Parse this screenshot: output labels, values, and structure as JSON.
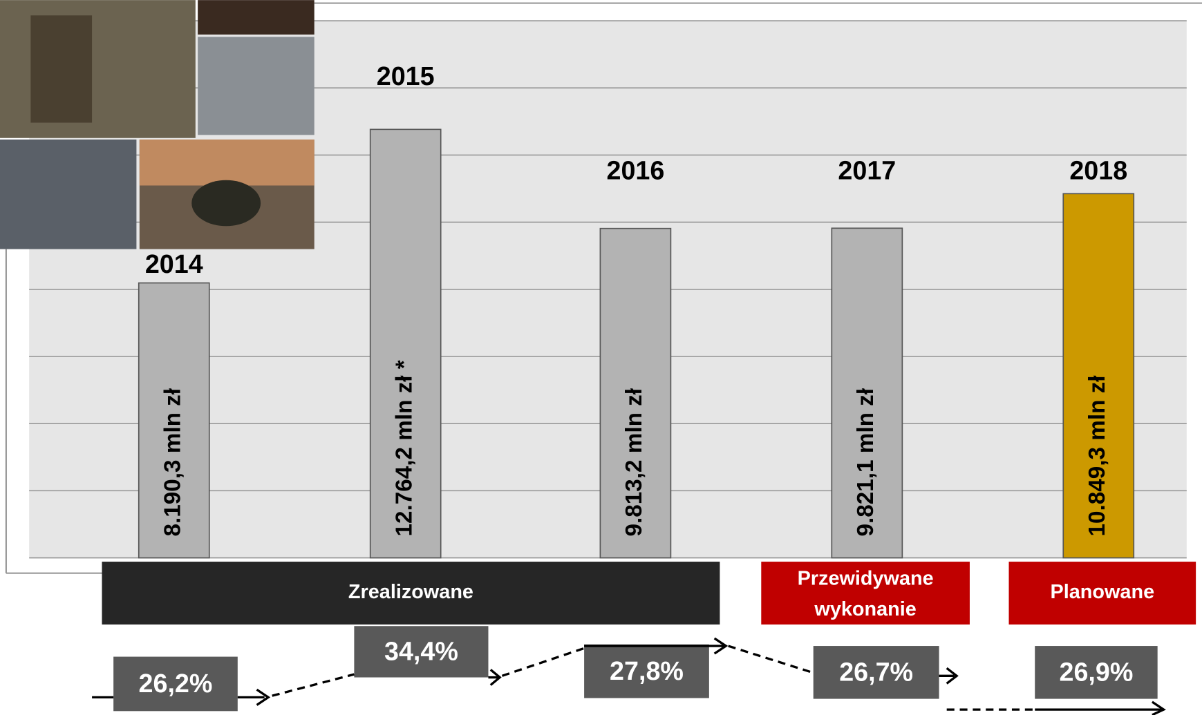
{
  "chart_data": {
    "type": "bar",
    "categories": [
      "2014",
      "2015",
      "2016",
      "2017",
      "2018"
    ],
    "values": [
      8190.3,
      12764.2,
      9813.2,
      9821.1,
      10849.3
    ],
    "value_labels": [
      "8.190,3 mln zł",
      "12.764,2 mln zł *",
      "9.813,2 mln zł",
      "9.821,1 mln zł",
      "10.849,3 mln zł"
    ],
    "colors": [
      "#b3b3b3",
      "#b3b3b3",
      "#b3b3b3",
      "#b3b3b3",
      "#cc9900"
    ],
    "ylim": [
      0,
      16000
    ],
    "yticks": [
      0,
      2000,
      4000,
      6000,
      8000,
      10000,
      12000,
      14000,
      16000
    ],
    "grid": true,
    "groups": [
      "Zrealizowane",
      "Przewidywane wykonanie",
      "Planowane"
    ],
    "group_colors": [
      "#262626",
      "#c00000",
      "#c00000"
    ],
    "percent_labels": [
      "26,2%",
      "34,4%",
      "27,8%",
      "26,7%",
      "26,9%"
    ]
  }
}
